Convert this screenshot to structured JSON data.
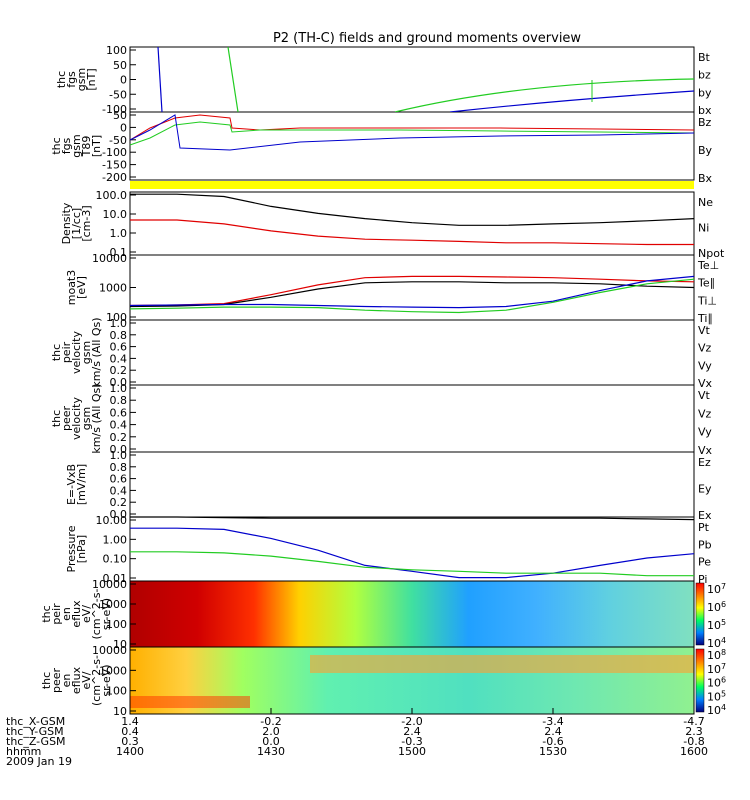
{
  "title": "P2 (TH-C) fields and ground moments overview",
  "colors": {
    "black": "#000000",
    "red": "#e00000",
    "green": "#22cc22",
    "blue": "#0000cc",
    "yellow": "#ffff00"
  },
  "panels": [
    {
      "id": "fgs",
      "ylabel": [
        "thc",
        "fgs",
        "gsm",
        "[nT]"
      ],
      "ticks": [
        "100",
        "50",
        "0",
        "-50",
        "-100"
      ],
      "legend": [
        {
          "text": "Bt",
          "color": "black"
        },
        {
          "text": "bz",
          "color": "red"
        },
        {
          "text": "by",
          "color": "green"
        },
        {
          "text": "bx",
          "color": "blue"
        }
      ]
    },
    {
      "id": "fgh",
      "ylabel": [
        "thc",
        "fgs",
        "gsm",
        "T89",
        "[nT]"
      ],
      "ticks": [
        "50",
        "0",
        "-50",
        "-100",
        "-150",
        "-200"
      ],
      "legend": [
        {
          "text": "Bz",
          "color": "red"
        },
        {
          "text": "By",
          "color": "green"
        },
        {
          "text": "Bx",
          "color": "blue"
        }
      ]
    },
    {
      "id": "density",
      "ylabel": [
        "Density",
        "[1/cc]",
        "[cm-3]"
      ],
      "ticks": [
        "100.0",
        "10.0",
        "1.0",
        "0.1"
      ],
      "legend": [
        {
          "text": "Ne",
          "color": "red"
        },
        {
          "text": "Ni",
          "color": "black"
        },
        {
          "text": "Npot",
          "color": "blue"
        }
      ]
    },
    {
      "id": "temp",
      "ylabel": [
        "moat3",
        "[eV]"
      ],
      "ticks": [
        "10000",
        "1000",
        "100"
      ],
      "legend": [
        {
          "text": "Te⊥",
          "color": "red"
        },
        {
          "text": "Te∥",
          "color": "black"
        },
        {
          "text": "Ti⊥",
          "color": "blue"
        },
        {
          "text": "Ti∥",
          "color": "green"
        }
      ]
    },
    {
      "id": "peirv",
      "ylabel": [
        "thc",
        "peir",
        "velocity",
        "gsm",
        "km/s (All Qs)"
      ],
      "ticks": [
        "1.0",
        "0.8",
        "0.6",
        "0.4",
        "0.2",
        "0.0"
      ],
      "legend": [
        {
          "text": "Vt",
          "color": "black"
        },
        {
          "text": "Vz",
          "color": "red"
        },
        {
          "text": "Vy",
          "color": "green"
        },
        {
          "text": "Vx",
          "color": "blue"
        }
      ]
    },
    {
      "id": "peerv",
      "ylabel": [
        "thc",
        "peer",
        "velocity",
        "gsm",
        "km/s (All Qs)"
      ],
      "ticks": [
        "1.0",
        "0.8",
        "0.6",
        "0.4",
        "0.2",
        "0.0"
      ],
      "legend": [
        {
          "text": "Vt",
          "color": "black"
        },
        {
          "text": "Vz",
          "color": "red"
        },
        {
          "text": "Vy",
          "color": "green"
        },
        {
          "text": "Vx",
          "color": "blue"
        }
      ]
    },
    {
      "id": "efield",
      "ylabel": [
        "E=-VxB",
        "[mV/m]"
      ],
      "ticks": [
        "1.0",
        "0.8",
        "0.6",
        "0.4",
        "0.2",
        "0.0"
      ],
      "legend": [
        {
          "text": "Ez",
          "color": "red"
        },
        {
          "text": "Ey",
          "color": "green"
        },
        {
          "text": "Ex",
          "color": "blue"
        }
      ]
    },
    {
      "id": "pressure",
      "ylabel": [
        "Pressure",
        "[nPa]"
      ],
      "ticks": [
        "10.00",
        "1.00",
        "0.10",
        "0.01"
      ],
      "legend": [
        {
          "text": "Pt",
          "color": "black"
        },
        {
          "text": "Pb",
          "color": "red"
        },
        {
          "text": "Pe",
          "color": "green"
        },
        {
          "text": "Pi",
          "color": "blue"
        }
      ]
    },
    {
      "id": "peirspec",
      "ylabel": [
        "thc",
        "peir",
        "en",
        "eflux",
        "eV/",
        "(cm^2-s-",
        "sr-eV)"
      ],
      "ticks": [
        "10000",
        "1000",
        "100",
        "10"
      ],
      "cbar": [
        "10^7",
        "10^6",
        "10^5",
        "10^4"
      ]
    },
    {
      "id": "peerspec",
      "ylabel": [
        "thc",
        "peer",
        "en",
        "eflux",
        "eV/",
        "(cm^2-s-",
        "sr-eV)"
      ],
      "ticks": [
        "10000",
        "1000",
        "100",
        "10"
      ],
      "cbar": [
        "10^8",
        "10^7",
        "10^6",
        "10^5",
        "10^4"
      ]
    }
  ],
  "xaxis": {
    "rows": [
      {
        "label": "thc_X-GSM",
        "values": [
          "1.4",
          "-0.2",
          "-2.0",
          "-3.4",
          "-4.7"
        ]
      },
      {
        "label": "thc_Y-GSM",
        "values": [
          "0.4",
          "2.0",
          "2.4",
          "2.4",
          "2.3"
        ]
      },
      {
        "label": "thc_Z-GSM",
        "values": [
          "0.3",
          "0.0",
          "-0.3",
          "-0.6",
          "-0.8"
        ]
      },
      {
        "label": "hhmm",
        "values": [
          "1400",
          "1430",
          "1500",
          "1530",
          "1600"
        ]
      }
    ],
    "date": "2009 Jan 19",
    "time_range_hhmm": [
      1400,
      1600
    ]
  },
  "chart_data": {
    "type": "line",
    "time_hhmm": [
      1400,
      1410,
      1420,
      1430,
      1440,
      1450,
      1500,
      1510,
      1520,
      1530,
      1540,
      1550,
      1600
    ],
    "density_ni": [
      150,
      150,
      110,
      30,
      12,
      6,
      3.5,
      2.5,
      2.5,
      3,
      3.5,
      4.5,
      6
    ],
    "density_ne": [
      5,
      5,
      3,
      1.2,
      0.6,
      0.4,
      0.35,
      0.3,
      0.25,
      0.25,
      0.22,
      0.2,
      0.2
    ],
    "temp_te_perp": [
      280,
      290,
      320,
      600,
      1200,
      2000,
      2200,
      2200,
      2100,
      2000,
      1800,
      1600,
      1500
    ],
    "temp_te_par": [
      260,
      270,
      300,
      500,
      900,
      1400,
      1500,
      1500,
      1400,
      1400,
      1300,
      1100,
      1000
    ],
    "temp_ti_perp": [
      280,
      290,
      300,
      300,
      280,
      260,
      250,
      240,
      260,
      380,
      800,
      1600,
      2200
    ],
    "temp_ti_par": [
      220,
      230,
      250,
      250,
      240,
      200,
      180,
      170,
      200,
      350,
      700,
      1300,
      1800
    ],
    "pressure_pi": [
      4,
      4,
      3.5,
      1.2,
      0.3,
      0.05,
      0.025,
      0.012,
      0.012,
      0.02,
      0.05,
      0.12,
      0.2
    ],
    "pressure_pe": [
      0.25,
      0.25,
      0.22,
      0.15,
      0.08,
      0.04,
      0.03,
      0.025,
      0.02,
      0.02,
      0.02,
      0.015,
      0.015
    ],
    "pressure_pt": [
      15,
      15,
      14,
      13,
      13,
      13,
      13,
      13,
      13,
      13,
      13,
      12,
      11
    ]
  }
}
